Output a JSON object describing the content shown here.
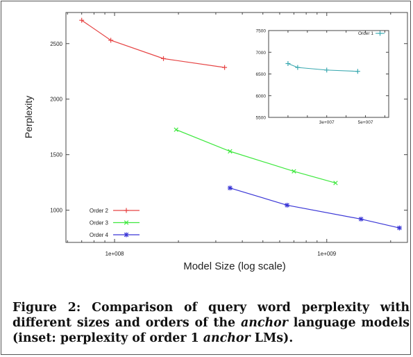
{
  "chart_data": [
    {
      "type": "line",
      "title": "",
      "xlabel": "Model Size (log scale)",
      "ylabel": "Perplexity",
      "xscale": "log",
      "xticks": [
        100000000,
        1000000000
      ],
      "xtick_labels": [
        "1e+008",
        "1e+009"
      ],
      "yticks": [
        1000,
        1500,
        2000,
        2500
      ],
      "ytick_labels": [
        "1000",
        "1500",
        "2000",
        "2500"
      ],
      "legend_position": "bottom-left",
      "grid": false,
      "series": [
        {
          "name": "Order 2",
          "color": "#e64343",
          "marker": "plus",
          "x": [
            70000000,
            96000000,
            170000000,
            330000000
          ],
          "y": [
            2710,
            2530,
            2365,
            2285
          ]
        },
        {
          "name": "Order 3",
          "color": "#3ee83e",
          "marker": "x",
          "x": [
            195000000,
            350000000,
            700000000,
            1100000000
          ],
          "y": [
            1725,
            1530,
            1350,
            1245
          ]
        },
        {
          "name": "Order 4",
          "color": "#3a36d6",
          "marker": "star",
          "x": [
            350000000,
            650000000,
            1450000000,
            2200000000
          ],
          "y": [
            1200,
            1045,
            920,
            840
          ]
        }
      ]
    },
    {
      "type": "line",
      "inset": true,
      "title": "",
      "xlabel": "",
      "ylabel": "",
      "xticks": [
        30000000,
        50000000
      ],
      "xtick_labels": [
        "3e+007",
        "5e+007"
      ],
      "yticks": [
        5500,
        6000,
        6500,
        7000,
        7500
      ],
      "ytick_labels": [
        "5500",
        "6000",
        "6500",
        "7000",
        "7500"
      ],
      "legend_position": "top-right",
      "series": [
        {
          "name": "Order 1",
          "color": "#3aa9b0",
          "marker": "plus",
          "x": [
            10000000,
            15000000,
            30000000,
            46000000
          ],
          "y": [
            6740,
            6650,
            6590,
            6560
          ]
        }
      ]
    }
  ],
  "caption": {
    "label": "Figure 2:",
    "text_1": "Comparison of query word perplexity with different sizes and orders of the",
    "italic_1": "anchor",
    "text_2": "language models (inset: perplexity of order 1",
    "italic_2": "anchor",
    "text_3": "LMs)."
  }
}
